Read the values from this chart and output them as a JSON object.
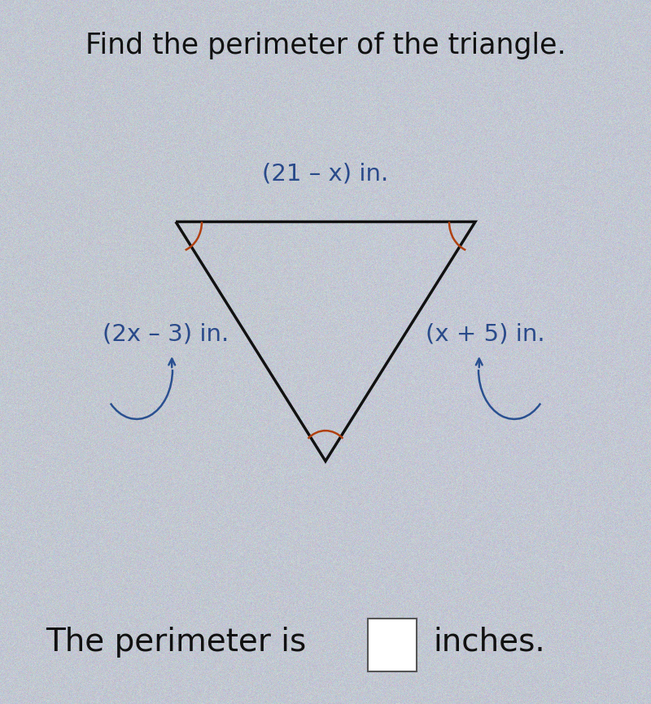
{
  "title": "Find the perimeter of the triangle.",
  "title_fontsize": 25,
  "title_color": "#111111",
  "bg_base_color": "#b8bec8",
  "triangle_color": "#111111",
  "triangle_linewidth": 2.5,
  "label_top": "(21 – x) in.",
  "label_left": "(2x – 3) in.",
  "label_right": "(x + 5) in.",
  "label_color": "#2a4a8a",
  "label_fontsize": 21,
  "answer_text_prefix": "The perimeter is",
  "answer_text_suffix": "inches.",
  "answer_fontsize": 28,
  "answer_text_color": "#111111",
  "box_color": "#ffffff",
  "box_edge_color": "#555555",
  "arc_color": "#b04010",
  "arrow_color": "#2a5090",
  "tlx": 0.27,
  "tly": 0.685,
  "trx": 0.73,
  "try_": 0.685,
  "bx": 0.5,
  "by_": 0.345
}
